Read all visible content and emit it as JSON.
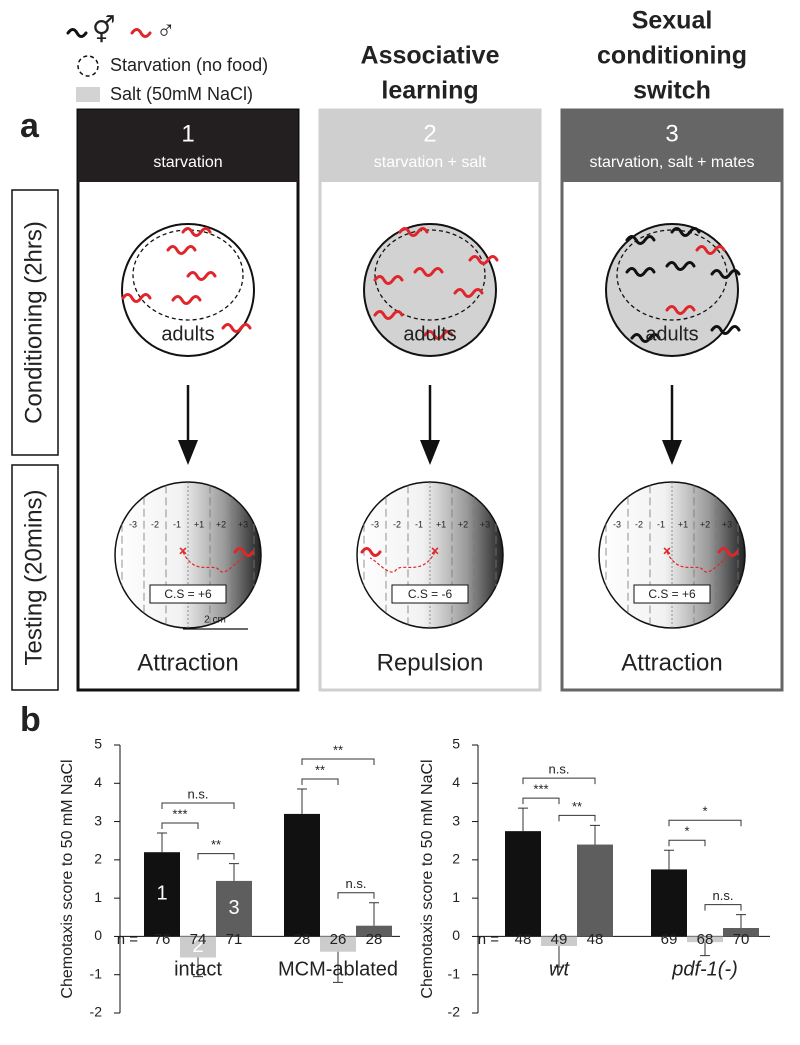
{
  "legend": {
    "hermaphrodite_symbol": "⚥",
    "male_symbol": "♂",
    "starvation": "Starvation (no food)",
    "salt": "Salt (50mM NaCl)"
  },
  "panel_a": {
    "letter": "a",
    "row_labels": [
      "Conditioning (2hrs)",
      "Testing (20mins)"
    ],
    "plate_zones": [
      "-3",
      "-2",
      "-1",
      "+1",
      "+2",
      "+3"
    ],
    "scale_bar": "2 cm",
    "columns": [
      {
        "title": [],
        "number": "1",
        "condition": "starvation",
        "plate_label": "adults",
        "score": "C.S = +6",
        "outcome": "Attraction"
      },
      {
        "title": [
          "Associative",
          "learning"
        ],
        "number": "2",
        "condition": "starvation + salt",
        "plate_label": "adults",
        "score": "C.S = -6",
        "outcome": "Repulsion"
      },
      {
        "title": [
          "Sexual",
          "conditioning",
          "switch"
        ],
        "number": "3",
        "condition": "starvation, salt + mates",
        "plate_label": "adults",
        "score": "C.S = +6",
        "outcome": "Attraction"
      }
    ]
  },
  "panel_b": {
    "letter": "b"
  },
  "chart_data": [
    {
      "type": "bar",
      "ylabel": "Chemotaxis score to 50 mM NaCl",
      "ylim": [
        -2,
        5
      ],
      "yticks": [
        -2,
        -1,
        0,
        1,
        2,
        3,
        4,
        5
      ],
      "categories": [
        "intact",
        "MCM-ablated"
      ],
      "category_italic": false,
      "series": [
        {
          "color": "#111111",
          "values": [
            2.2,
            3.2
          ],
          "errors": [
            0.5,
            0.65
          ]
        },
        {
          "color": "#cccccc",
          "values": [
            -0.55,
            -0.4
          ],
          "errors": [
            0.5,
            0.8
          ]
        },
        {
          "color": "#5e5e5e",
          "values": [
            1.45,
            0.28
          ],
          "errors": [
            0.45,
            0.6
          ]
        }
      ],
      "bar_labels": [
        "1",
        "2",
        "3"
      ],
      "n_label": "n =",
      "n": [
        [
          76,
          74,
          71
        ],
        [
          28,
          26,
          28
        ]
      ],
      "significance": [
        {
          "group": 0,
          "bars": [
            0,
            1
          ],
          "label": "***"
        },
        {
          "group": 0,
          "bars": [
            1,
            2
          ],
          "label": "**"
        },
        {
          "group": 0,
          "bars": [
            0,
            2
          ],
          "label": "n.s."
        },
        {
          "group": 1,
          "bars": [
            0,
            1
          ],
          "label": "**"
        },
        {
          "group": 1,
          "bars": [
            1,
            2
          ],
          "label": "n.s."
        },
        {
          "group": 1,
          "bars": [
            0,
            2
          ],
          "label": "**"
        }
      ]
    },
    {
      "type": "bar",
      "ylabel": "Chemotaxis score to 50 mM NaCl",
      "ylim": [
        -2,
        5
      ],
      "yticks": [
        -2,
        -1,
        0,
        1,
        2,
        3,
        4,
        5
      ],
      "categories": [
        "wt",
        "pdf-1(-)"
      ],
      "category_italic": true,
      "series": [
        {
          "color": "#111111",
          "values": [
            2.75,
            1.75
          ],
          "errors": [
            0.6,
            0.5
          ]
        },
        {
          "color": "#cccccc",
          "values": [
            -0.25,
            -0.15
          ],
          "errors": [
            0.55,
            0.35
          ]
        },
        {
          "color": "#5e5e5e",
          "values": [
            2.4,
            0.22
          ],
          "errors": [
            0.5,
            0.35
          ]
        }
      ],
      "n_label": "n =",
      "n": [
        [
          48,
          49,
          48
        ],
        [
          69,
          68,
          70
        ]
      ],
      "significance": [
        {
          "group": 0,
          "bars": [
            0,
            1
          ],
          "label": "***"
        },
        {
          "group": 0,
          "bars": [
            1,
            2
          ],
          "label": "**"
        },
        {
          "group": 0,
          "bars": [
            0,
            2
          ],
          "label": "n.s."
        },
        {
          "group": 1,
          "bars": [
            0,
            1
          ],
          "label": "*"
        },
        {
          "group": 1,
          "bars": [
            1,
            2
          ],
          "label": "n.s."
        },
        {
          "group": 1,
          "bars": [
            0,
            2
          ],
          "label": "*"
        }
      ]
    }
  ]
}
